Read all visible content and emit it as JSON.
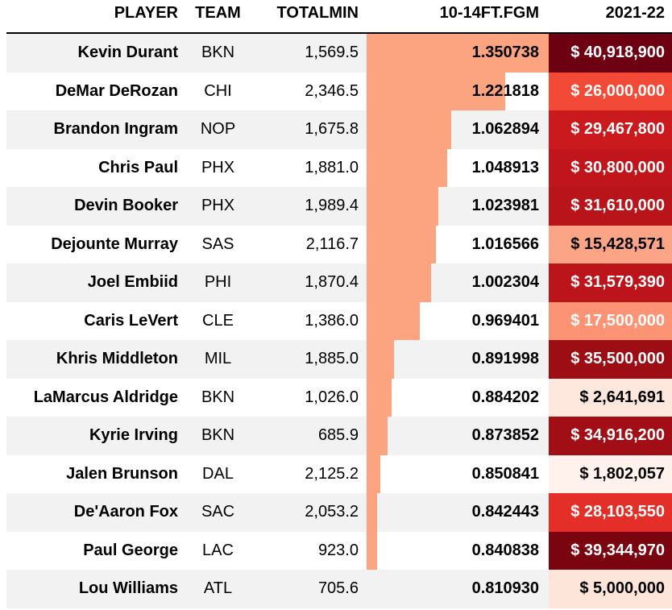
{
  "chart_data": {
    "type": "table",
    "columns": [
      "PLAYER",
      "TEAM",
      "TOTALMIN",
      "10-14FT.FGM",
      "2021-22"
    ],
    "fgm_bar_range": [
      0.81093,
      1.350738
    ],
    "rows": [
      {
        "player": "Kevin Durant",
        "team": "BKN",
        "totalmin": "1,569.5",
        "fgm": "1.350738",
        "salary": "$ 40,918,900",
        "salary_bg": "#6d0112",
        "salary_fg": "#ffffff"
      },
      {
        "player": "DeMar DeRozan",
        "team": "CHI",
        "totalmin": "2,346.5",
        "fgm": "1.221818",
        "salary": "$ 26,000,000",
        "salary_bg": "#f24a37",
        "salary_fg": "#ffffff"
      },
      {
        "player": "Brandon Ingram",
        "team": "NOP",
        "totalmin": "1,675.8",
        "fgm": "1.062894",
        "salary": "$ 29,467,800",
        "salary_bg": "#cb1a1e",
        "salary_fg": "#ffffff"
      },
      {
        "player": "Chris Paul",
        "team": "PHX",
        "totalmin": "1,881.0",
        "fgm": "1.048913",
        "salary": "$ 30,800,000",
        "salary_bg": "#c0151b",
        "salary_fg": "#ffffff"
      },
      {
        "player": "Devin Booker",
        "team": "PHX",
        "totalmin": "1,989.4",
        "fgm": "1.023981",
        "salary": "$ 31,610,000",
        "salary_bg": "#b91419",
        "salary_fg": "#ffffff"
      },
      {
        "player": "Dejounte Murray",
        "team": "SAS",
        "totalmin": "2,116.7",
        "fgm": "1.016566",
        "salary": "$ 15,428,571",
        "salary_bg": "#fca486",
        "salary_fg": "#000000"
      },
      {
        "player": "Joel Embiid",
        "team": "PHI",
        "totalmin": "1,870.4",
        "fgm": "1.002304",
        "salary": "$ 31,579,390",
        "salary_bg": "#bb141a",
        "salary_fg": "#ffffff"
      },
      {
        "player": "Caris LeVert",
        "team": "CLE",
        "totalmin": "1,386.0",
        "fgm": "0.969401",
        "salary": "$ 17,500,000",
        "salary_bg": "#fc9374",
        "salary_fg": "#ffffff"
      },
      {
        "player": "Khris Middleton",
        "team": "MIL",
        "totalmin": "1,885.0",
        "fgm": "0.891998",
        "salary": "$ 35,500,000",
        "salary_bg": "#9c0d14",
        "salary_fg": "#ffffff"
      },
      {
        "player": "LaMarcus Aldridge",
        "team": "BKN",
        "totalmin": "1,026.0",
        "fgm": "0.884202",
        "salary": "$ 2,641,691",
        "salary_bg": "#fee7dc",
        "salary_fg": "#000000"
      },
      {
        "player": "Kyrie Irving",
        "team": "BKN",
        "totalmin": "685.9",
        "fgm": "0.873852",
        "salary": "$ 34,916,200",
        "salary_bg": "#a10e15",
        "salary_fg": "#ffffff"
      },
      {
        "player": "Jalen Brunson",
        "team": "DAL",
        "totalmin": "2,125.2",
        "fgm": "0.850841",
        "salary": "$ 1,802,057",
        "salary_bg": "#fff2ec",
        "salary_fg": "#000000"
      },
      {
        "player": "De'Aaron Fox",
        "team": "SAC",
        "totalmin": "2,053.2",
        "fgm": "0.842443",
        "salary": "$ 28,103,550",
        "salary_bg": "#e32f27",
        "salary_fg": "#ffffff"
      },
      {
        "player": "Paul George",
        "team": "LAC",
        "totalmin": "923.0",
        "fgm": "0.840838",
        "salary": "$ 39,344,970",
        "salary_bg": "#7a0510",
        "salary_fg": "#ffffff"
      },
      {
        "player": "Lou Williams",
        "team": "ATL",
        "totalmin": "705.6",
        "fgm": "0.810930",
        "salary": "$ 5,000,000",
        "salary_bg": "#fee5d9",
        "salary_fg": "#000000"
      }
    ]
  }
}
